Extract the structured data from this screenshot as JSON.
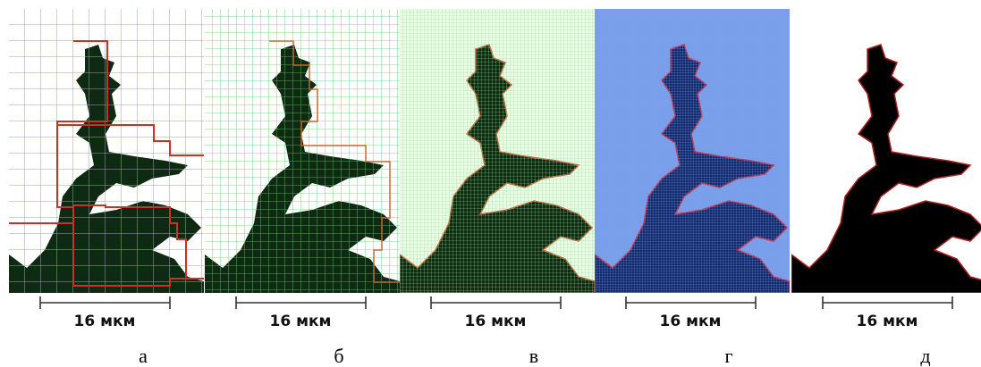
{
  "panels": [
    {
      "scale_label": "16 мкм",
      "caption": "а"
    },
    {
      "scale_label": "16 мкм",
      "caption": "б"
    },
    {
      "scale_label": "16 мкм",
      "caption": "в"
    },
    {
      "scale_label": "16 мкм",
      "caption": "г"
    },
    {
      "scale_label": "16 мкм",
      "caption": "д"
    }
  ]
}
